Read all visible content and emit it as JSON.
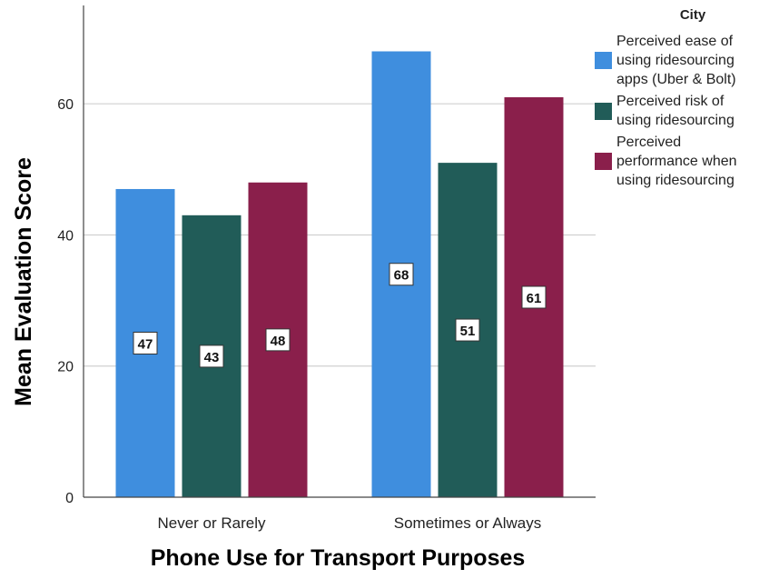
{
  "chart_data": {
    "type": "bar",
    "title": "",
    "xlabel": "Phone Use for Transport Purposes",
    "ylabel": "Mean Evaluation Score",
    "categories": [
      "Never or Rarely",
      "Sometimes or Always"
    ],
    "ylim": [
      0,
      75
    ],
    "yticks": [
      0,
      20,
      40,
      60
    ],
    "grid": true,
    "legend_title": "City",
    "legend_position": "top-right",
    "series": [
      {
        "name": "Perceived ease of\nusing ridesourcing\napps (Uber & Bolt)",
        "color": "#3f8ede",
        "values": [
          47,
          68
        ],
        "labels": [
          "47",
          "68"
        ]
      },
      {
        "name": "Perceived risk of\nusing ridesourcing",
        "color": "#215c58",
        "values": [
          43,
          51
        ],
        "labels": [
          "43",
          "51"
        ]
      },
      {
        "name": "Perceived\nperformance when\nusing ridesourcing",
        "color": "#8a1f4b",
        "values": [
          48,
          61
        ],
        "labels": [
          "48",
          "61"
        ]
      }
    ]
  }
}
